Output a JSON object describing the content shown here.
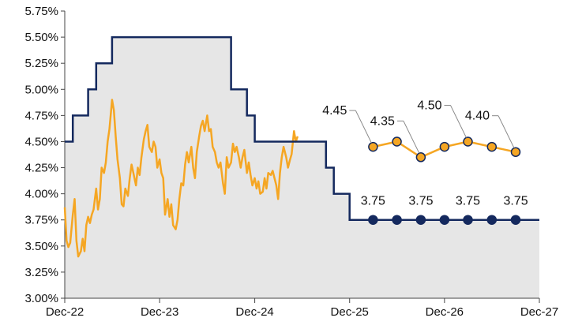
{
  "chart_data": {
    "type": "line",
    "title": "",
    "xlabel": "",
    "ylabel": "",
    "ylim": [
      3.0,
      5.75
    ],
    "y_ticks": [
      "3.00%",
      "3.25%",
      "3.50%",
      "3.75%",
      "4.00%",
      "4.25%",
      "4.50%",
      "4.75%",
      "5.00%",
      "5.25%",
      "5.50%",
      "5.75%"
    ],
    "x_ticks": [
      "Dec-22",
      "Dec-23",
      "Dec-24",
      "Dec-25",
      "Dec-26",
      "Dec-27"
    ],
    "grid": false,
    "legend": "none",
    "colors": {
      "policy": "#14295e",
      "treasury": "#f5a623",
      "area": "#e6e6e6",
      "axis": "#444444",
      "leader": "#888888"
    },
    "series": [
      {
        "kind": "step-area",
        "points": [
          [
            "2022-12-01",
            4.5
          ],
          [
            "2023-01-01",
            4.75
          ],
          [
            "2023-03-01",
            5.0
          ],
          [
            "2023-04-01",
            5.25
          ],
          [
            "2023-06-01",
            5.5
          ],
          [
            "2024-09-01",
            5.0
          ],
          [
            "2024-11-01",
            4.75
          ],
          [
            "2024-12-01",
            4.5
          ],
          [
            "2025-09-01",
            4.25
          ],
          [
            "2025-10-01",
            4.0
          ],
          [
            "2025-12-01",
            3.75
          ],
          [
            "2027-12-01",
            3.75
          ]
        ]
      },
      {
        "kind": "line",
        "points": [
          [
            "2022-12-01",
            3.87
          ],
          [
            "2022-12-08",
            3.55
          ],
          [
            "2022-12-15",
            3.49
          ],
          [
            "2022-12-22",
            3.53
          ],
          [
            "2023-01-01",
            3.8
          ],
          [
            "2023-01-08",
            3.95
          ],
          [
            "2023-01-15",
            3.55
          ],
          [
            "2023-01-22",
            3.4
          ],
          [
            "2023-02-01",
            3.45
          ],
          [
            "2023-02-08",
            3.57
          ],
          [
            "2023-02-15",
            3.45
          ],
          [
            "2023-02-22",
            3.7
          ],
          [
            "2023-03-01",
            3.78
          ],
          [
            "2023-03-08",
            3.72
          ],
          [
            "2023-03-15",
            3.8
          ],
          [
            "2023-03-22",
            3.85
          ],
          [
            "2023-04-01",
            4.05
          ],
          [
            "2023-04-08",
            3.85
          ],
          [
            "2023-04-15",
            3.95
          ],
          [
            "2023-04-22",
            4.25
          ],
          [
            "2023-05-01",
            4.2
          ],
          [
            "2023-05-08",
            4.3
          ],
          [
            "2023-05-15",
            4.5
          ],
          [
            "2023-05-22",
            4.62
          ],
          [
            "2023-06-01",
            4.9
          ],
          [
            "2023-06-08",
            4.8
          ],
          [
            "2023-06-15",
            4.55
          ],
          [
            "2023-06-22",
            4.33
          ],
          [
            "2023-07-01",
            4.15
          ],
          [
            "2023-07-08",
            3.9
          ],
          [
            "2023-07-15",
            3.88
          ],
          [
            "2023-07-22",
            4.05
          ],
          [
            "2023-08-01",
            3.98
          ],
          [
            "2023-08-08",
            4.15
          ],
          [
            "2023-08-15",
            4.28
          ],
          [
            "2023-08-22",
            4.2
          ],
          [
            "2023-09-01",
            4.08
          ],
          [
            "2023-09-08",
            4.25
          ],
          [
            "2023-09-15",
            4.18
          ],
          [
            "2023-09-22",
            4.35
          ],
          [
            "2023-10-01",
            4.52
          ],
          [
            "2023-10-08",
            4.6
          ],
          [
            "2023-10-15",
            4.66
          ],
          [
            "2023-10-22",
            4.45
          ],
          [
            "2023-11-01",
            4.4
          ],
          [
            "2023-11-08",
            4.5
          ],
          [
            "2023-11-15",
            4.45
          ],
          [
            "2023-11-22",
            4.25
          ],
          [
            "2023-12-01",
            4.33
          ],
          [
            "2023-12-08",
            4.2
          ],
          [
            "2023-12-15",
            4.15
          ],
          [
            "2023-12-22",
            3.8
          ],
          [
            "2024-01-01",
            3.95
          ],
          [
            "2024-01-08",
            3.78
          ],
          [
            "2024-01-15",
            3.9
          ],
          [
            "2024-01-22",
            3.7
          ],
          [
            "2024-02-01",
            3.66
          ],
          [
            "2024-02-08",
            3.75
          ],
          [
            "2024-02-15",
            3.95
          ],
          [
            "2024-02-22",
            4.1
          ],
          [
            "2024-03-01",
            4.08
          ],
          [
            "2024-03-08",
            4.28
          ],
          [
            "2024-03-15",
            4.4
          ],
          [
            "2024-03-22",
            4.3
          ],
          [
            "2024-04-01",
            4.45
          ],
          [
            "2024-04-08",
            4.25
          ],
          [
            "2024-04-15",
            4.15
          ],
          [
            "2024-04-22",
            4.4
          ],
          [
            "2024-05-01",
            4.55
          ],
          [
            "2024-05-08",
            4.65
          ],
          [
            "2024-05-15",
            4.7
          ],
          [
            "2024-05-22",
            4.6
          ],
          [
            "2024-06-01",
            4.75
          ],
          [
            "2024-06-08",
            4.6
          ],
          [
            "2024-06-15",
            4.62
          ],
          [
            "2024-06-22",
            4.45
          ],
          [
            "2024-07-01",
            4.4
          ],
          [
            "2024-07-08",
            4.3
          ],
          [
            "2024-07-15",
            4.25
          ],
          [
            "2024-07-22",
            4.3
          ],
          [
            "2024-08-01",
            4.1
          ],
          [
            "2024-08-08",
            4.0
          ],
          [
            "2024-08-15",
            4.35
          ],
          [
            "2024-08-22",
            4.25
          ],
          [
            "2024-09-01",
            4.3
          ],
          [
            "2024-09-08",
            4.48
          ],
          [
            "2024-09-15",
            4.4
          ],
          [
            "2024-09-22",
            4.45
          ],
          [
            "2024-10-01",
            4.35
          ],
          [
            "2024-10-08",
            4.25
          ],
          [
            "2024-10-15",
            4.35
          ],
          [
            "2024-10-22",
            4.42
          ],
          [
            "2024-11-01",
            4.2
          ],
          [
            "2024-11-08",
            4.3
          ],
          [
            "2024-11-15",
            4.18
          ],
          [
            "2024-11-22",
            4.08
          ],
          [
            "2024-12-01",
            4.15
          ],
          [
            "2024-12-08",
            4.05
          ],
          [
            "2024-12-15",
            4.12
          ],
          [
            "2024-12-22",
            4.0
          ],
          [
            "2025-01-01",
            4.02
          ],
          [
            "2025-01-08",
            4.15
          ],
          [
            "2025-01-15",
            4.05
          ],
          [
            "2025-01-22",
            4.2
          ],
          [
            "2025-02-01",
            4.18
          ],
          [
            "2025-02-08",
            4.22
          ],
          [
            "2025-02-15",
            4.15
          ],
          [
            "2025-02-22",
            4.08
          ],
          [
            "2025-03-01",
            3.95
          ],
          [
            "2025-03-08",
            4.2
          ],
          [
            "2025-03-15",
            4.35
          ],
          [
            "2025-03-22",
            4.45
          ],
          [
            "2025-04-01",
            4.35
          ],
          [
            "2025-04-08",
            4.25
          ],
          [
            "2025-04-15",
            4.32
          ],
          [
            "2025-04-22",
            4.38
          ],
          [
            "2025-05-01",
            4.6
          ],
          [
            "2025-05-08",
            4.5
          ],
          [
            "2025-05-15",
            4.55
          ]
        ]
      },
      {
        "kind": "forecast",
        "points": [
          [
            "2026-03-01",
            4.45
          ],
          [
            "2026-06-01",
            4.5
          ],
          [
            "2026-09-01",
            4.35
          ],
          [
            "2026-12-01",
            4.45
          ],
          [
            "2027-03-01",
            4.5
          ],
          [
            "2027-06-01",
            4.45
          ],
          [
            "2027-09-01",
            4.4
          ]
        ]
      },
      {
        "kind": "forecast",
        "points": [
          [
            "2026-03-01",
            3.75
          ],
          [
            "2026-06-01",
            3.75
          ],
          [
            "2026-09-01",
            3.75
          ],
          [
            "2026-12-01",
            3.75
          ],
          [
            "2027-03-01",
            3.75
          ],
          [
            "2027-06-01",
            3.75
          ],
          [
            "2027-09-01",
            3.75
          ]
        ]
      }
    ],
    "annotations": [
      {
        "text": "4.45",
        "x": "2026-03-01",
        "y": 4.45,
        "series": "treasury"
      },
      {
        "text": "4.35",
        "x": "2026-09-01",
        "y": 4.35,
        "series": "treasury"
      },
      {
        "text": "4.50",
        "x": "2027-03-01",
        "y": 4.5,
        "series": "treasury"
      },
      {
        "text": "4.40",
        "x": "2027-09-01",
        "y": 4.4,
        "series": "treasury"
      },
      {
        "text": "3.75",
        "x": "2026-03-01",
        "y": 3.75,
        "series": "policy"
      },
      {
        "text": "3.75",
        "x": "2026-09-01",
        "y": 3.75,
        "series": "policy"
      },
      {
        "text": "3.75",
        "x": "2027-03-01",
        "y": 3.75,
        "series": "policy"
      },
      {
        "text": "3.75",
        "x": "2027-09-01",
        "y": 3.75,
        "series": "policy"
      }
    ]
  }
}
